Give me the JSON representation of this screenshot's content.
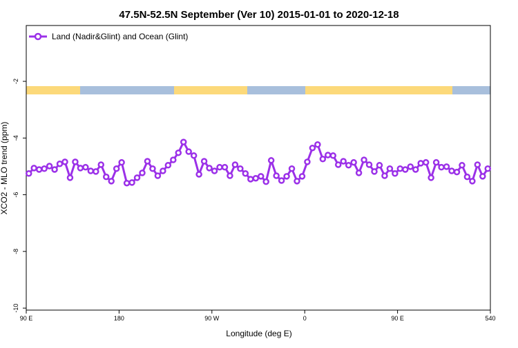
{
  "chart_data": {
    "type": "line",
    "title": "47.5N-52.5N September (Ver 10)   2015-01-01 to 2020-12-18",
    "x_label": "Longitude (deg E)",
    "y_label": "XCO2 - MLO trend (ppm)",
    "xlim": [
      90,
      540
    ],
    "ylim": [
      -10.07,
      -0.03
    ],
    "xticks": [
      {
        "value": 90,
        "label": "90 E"
      },
      180,
      {
        "value": 270,
        "label": "90 W"
      },
      {
        "value": 360,
        "label": "0"
      },
      {
        "value": 450,
        "label": "90 E"
      },
      540
    ],
    "yticks": [
      -10,
      -8,
      -6,
      -4,
      -2
    ],
    "legend": "upper left",
    "x": [
      92.5,
      97.5,
      102.5,
      107.5,
      112.5,
      117.5,
      122.5,
      127.5,
      132.5,
      137.5,
      142.5,
      147.5,
      152.5,
      157.5,
      162.5,
      167.5,
      172.5,
      177.5,
      182.5,
      187.5,
      192.5,
      197.5,
      202.5,
      207.5,
      212.5,
      217.5,
      222.5,
      227.5,
      232.5,
      237.5,
      242.5,
      247.5,
      252.5,
      257.5,
      262.5,
      267.5,
      272.5,
      277.5,
      282.5,
      287.5,
      292.5,
      297.5,
      302.5,
      307.5,
      312.5,
      317.5,
      322.5,
      327.5,
      332.5,
      337.5,
      342.5,
      347.5,
      352.5,
      357.5,
      362.5,
      367.5,
      372.5,
      377.5,
      382.5,
      387.5,
      392.5,
      397.5,
      402.5,
      407.5,
      412.5,
      417.5,
      422.5,
      427.5,
      432.5,
      437.5,
      442.5,
      447.5,
      452.5,
      457.5,
      462.5,
      467.5,
      472.5,
      477.5,
      482.5,
      487.5,
      492.5,
      497.5,
      502.5,
      507.5,
      512.5,
      517.5,
      522.5,
      527.5,
      532.5,
      537.5
    ],
    "series": [
      {
        "name": "Land (Nadir&Glint) and Ocean (Glint)",
        "color": "#9b30e8",
        "values": [
          -5.25,
          -5.06,
          -5.11,
          -5.08,
          -4.99,
          -5.11,
          -4.91,
          -4.84,
          -5.4,
          -4.84,
          -5.06,
          -5.03,
          -5.16,
          -5.18,
          -4.94,
          -5.37,
          -5.52,
          -5.08,
          -4.86,
          -5.59,
          -5.57,
          -5.4,
          -5.23,
          -4.82,
          -5.08,
          -5.33,
          -5.16,
          -4.96,
          -4.77,
          -4.52,
          -4.14,
          -4.48,
          -4.62,
          -5.28,
          -4.82,
          -5.06,
          -5.16,
          -5.03,
          -5.03,
          -5.33,
          -4.94,
          -5.08,
          -5.25,
          -5.45,
          -5.42,
          -5.35,
          -5.54,
          -4.79,
          -5.33,
          -5.5,
          -5.35,
          -5.08,
          -5.52,
          -5.35,
          -4.84,
          -4.35,
          -4.23,
          -4.74,
          -4.6,
          -4.62,
          -4.94,
          -4.82,
          -4.96,
          -4.86,
          -5.23,
          -4.77,
          -4.94,
          -5.18,
          -4.96,
          -5.33,
          -5.08,
          -5.25,
          -5.08,
          -5.11,
          -5.01,
          -5.11,
          -4.89,
          -4.86,
          -5.4,
          -4.86,
          -5.03,
          -5.01,
          -5.16,
          -5.2,
          -4.96,
          -5.37,
          -5.52,
          -4.94,
          -5.35,
          -5.08
        ]
      }
    ]
  }
}
